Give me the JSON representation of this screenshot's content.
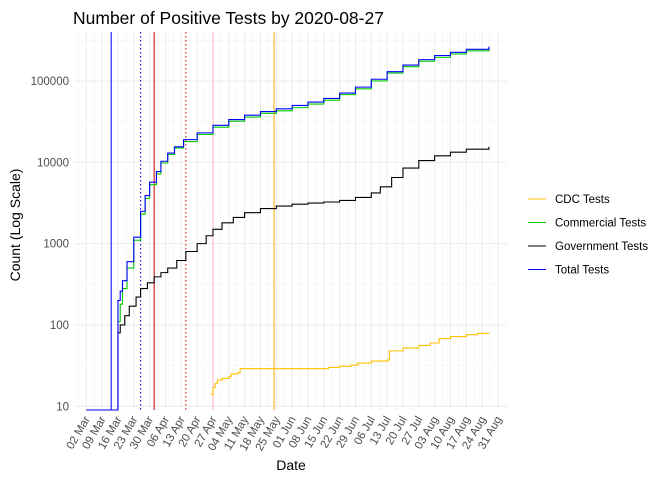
{
  "chart_data": {
    "type": "line",
    "title": "Number of Positive Tests by  2020-08-27",
    "xlabel": "Date",
    "ylabel": "Count (Log Scale)",
    "y_scale": "log10",
    "ylim": [
      9,
      400000
    ],
    "xlim": [
      "2020-02-26",
      "2020-09-04"
    ],
    "y_ticks": [
      10,
      100,
      1000,
      10000,
      100000
    ],
    "y_tick_labels": [
      "10",
      "100",
      "1000",
      "10000",
      "100000"
    ],
    "x_ticks": [
      "2020-03-02",
      "2020-03-09",
      "2020-03-16",
      "2020-03-23",
      "2020-03-30",
      "2020-04-06",
      "2020-04-13",
      "2020-04-20",
      "2020-04-27",
      "2020-05-04",
      "2020-05-11",
      "2020-05-18",
      "2020-05-25",
      "2020-06-01",
      "2020-06-08",
      "2020-06-15",
      "2020-06-22",
      "2020-06-29",
      "2020-07-06",
      "2020-07-13",
      "2020-07-20",
      "2020-07-27",
      "2020-08-03",
      "2020-08-10",
      "2020-08-17",
      "2020-08-24",
      "2020-08-31"
    ],
    "x_tick_labels": [
      "02 Mar",
      "09 Mar",
      "16 Mar",
      "23 Mar",
      "30 Mar",
      "06 Apr",
      "13 Apr",
      "20 Apr",
      "27 Apr",
      "04 May",
      "11 May",
      "18 May",
      "25 May",
      "01 Jun",
      "08 Jun",
      "15 Jun",
      "22 Jun",
      "29 Jun",
      "06 Jul",
      "13 Jul",
      "20 Jul",
      "27 Jul",
      "03 Aug",
      "10 Aug",
      "17 Aug",
      "24 Aug",
      "31 Aug"
    ],
    "grid": true,
    "legend_position": "right",
    "vlines": [
      {
        "x": "2020-03-13",
        "color": "#0000ff",
        "style": "solid"
      },
      {
        "x": "2020-03-26",
        "color": "#0000ff",
        "style": "dotted"
      },
      {
        "x": "2020-04-01",
        "color": "#cc0000",
        "style": "solid"
      },
      {
        "x": "2020-04-15",
        "color": "#cc0000",
        "style": "dotted"
      },
      {
        "x": "2020-04-27",
        "color": "#ffb6c1",
        "style": "solid"
      },
      {
        "x": "2020-05-24",
        "color": "#ffa500",
        "style": "solid"
      }
    ],
    "series": [
      {
        "name": "CDC Tests",
        "color": "#ffc000",
        "points": [
          [
            "2020-04-26",
            14
          ],
          [
            "2020-04-27",
            17
          ],
          [
            "2020-04-28",
            19
          ],
          [
            "2020-04-29",
            21
          ],
          [
            "2020-05-01",
            22
          ],
          [
            "2020-05-04",
            23
          ],
          [
            "2020-05-05",
            25
          ],
          [
            "2020-05-08",
            26
          ],
          [
            "2020-05-09",
            29
          ],
          [
            "2020-05-15",
            29
          ],
          [
            "2020-06-01",
            29
          ],
          [
            "2020-06-16",
            29
          ],
          [
            "2020-06-17",
            30
          ],
          [
            "2020-06-22",
            31
          ],
          [
            "2020-06-27",
            32
          ],
          [
            "2020-06-30",
            34
          ],
          [
            "2020-07-06",
            36
          ],
          [
            "2020-07-13",
            37
          ],
          [
            "2020-07-14",
            48
          ],
          [
            "2020-07-20",
            52
          ],
          [
            "2020-07-27",
            56
          ],
          [
            "2020-08-01",
            60
          ],
          [
            "2020-08-05",
            68
          ],
          [
            "2020-08-10",
            72
          ],
          [
            "2020-08-17",
            76
          ],
          [
            "2020-08-22",
            79
          ],
          [
            "2020-08-27",
            80
          ]
        ]
      },
      {
        "name": "Commercial Tests",
        "color": "#00cc00",
        "points": [
          [
            "2020-03-16",
            110
          ],
          [
            "2020-03-17",
            180
          ],
          [
            "2020-03-18",
            280
          ],
          [
            "2020-03-20",
            500
          ],
          [
            "2020-03-23",
            1100
          ],
          [
            "2020-03-26",
            2300
          ],
          [
            "2020-03-28",
            3600
          ],
          [
            "2020-03-30",
            5300
          ],
          [
            "2020-04-02",
            7200
          ],
          [
            "2020-04-04",
            9800
          ],
          [
            "2020-04-07",
            12500
          ],
          [
            "2020-04-10",
            15000
          ],
          [
            "2020-04-14",
            18000
          ],
          [
            "2020-04-20",
            22000
          ],
          [
            "2020-04-27",
            27000
          ],
          [
            "2020-05-04",
            32000
          ],
          [
            "2020-05-11",
            36000
          ],
          [
            "2020-05-18",
            40000
          ],
          [
            "2020-05-25",
            43000
          ],
          [
            "2020-06-01",
            47000
          ],
          [
            "2020-06-08",
            52000
          ],
          [
            "2020-06-15",
            58000
          ],
          [
            "2020-06-22",
            68000
          ],
          [
            "2020-06-29",
            80000
          ],
          [
            "2020-07-06",
            100000
          ],
          [
            "2020-07-13",
            125000
          ],
          [
            "2020-07-20",
            150000
          ],
          [
            "2020-07-27",
            175000
          ],
          [
            "2020-08-03",
            195000
          ],
          [
            "2020-08-10",
            215000
          ],
          [
            "2020-08-17",
            235000
          ],
          [
            "2020-08-27",
            255000
          ]
        ]
      },
      {
        "name": "Government Tests",
        "color": "#000000",
        "points": [
          [
            "2020-03-02",
            9
          ],
          [
            "2020-03-15",
            9
          ],
          [
            "2020-03-16",
            20
          ],
          [
            "2020-03-16",
            80
          ],
          [
            "2020-03-17",
            100
          ],
          [
            "2020-03-19",
            130
          ],
          [
            "2020-03-21",
            170
          ],
          [
            "2020-03-24",
            220
          ],
          [
            "2020-03-26",
            280
          ],
          [
            "2020-03-29",
            330
          ],
          [
            "2020-04-01",
            390
          ],
          [
            "2020-04-04",
            440
          ],
          [
            "2020-04-07",
            500
          ],
          [
            "2020-04-11",
            620
          ],
          [
            "2020-04-15",
            800
          ],
          [
            "2020-04-20",
            1000
          ],
          [
            "2020-04-24",
            1250
          ],
          [
            "2020-04-27",
            1500
          ],
          [
            "2020-05-01",
            1800
          ],
          [
            "2020-05-06",
            2100
          ],
          [
            "2020-05-11",
            2400
          ],
          [
            "2020-05-18",
            2700
          ],
          [
            "2020-05-25",
            2900
          ],
          [
            "2020-06-01",
            3050
          ],
          [
            "2020-06-08",
            3150
          ],
          [
            "2020-06-15",
            3250
          ],
          [
            "2020-06-22",
            3400
          ],
          [
            "2020-06-29",
            3700
          ],
          [
            "2020-07-06",
            4200
          ],
          [
            "2020-07-10",
            5000
          ],
          [
            "2020-07-15",
            6500
          ],
          [
            "2020-07-20",
            8500
          ],
          [
            "2020-07-27",
            10500
          ],
          [
            "2020-08-03",
            12000
          ],
          [
            "2020-08-10",
            13300
          ],
          [
            "2020-08-17",
            14500
          ],
          [
            "2020-08-27",
            15500
          ]
        ]
      },
      {
        "name": "Total Tests",
        "color": "#0000ff",
        "points": [
          [
            "2020-03-02",
            9
          ],
          [
            "2020-03-15",
            9
          ],
          [
            "2020-03-16",
            200
          ],
          [
            "2020-03-17",
            260
          ],
          [
            "2020-03-18",
            350
          ],
          [
            "2020-03-20",
            600
          ],
          [
            "2020-03-23",
            1200
          ],
          [
            "2020-03-26",
            2500
          ],
          [
            "2020-03-28",
            3900
          ],
          [
            "2020-03-30",
            5700
          ],
          [
            "2020-04-02",
            7700
          ],
          [
            "2020-04-04",
            10300
          ],
          [
            "2020-04-07",
            13000
          ],
          [
            "2020-04-10",
            15500
          ],
          [
            "2020-04-14",
            19000
          ],
          [
            "2020-04-20",
            23000
          ],
          [
            "2020-04-27",
            28500
          ],
          [
            "2020-05-04",
            33500
          ],
          [
            "2020-05-11",
            38000
          ],
          [
            "2020-05-18",
            42000
          ],
          [
            "2020-05-25",
            45500
          ],
          [
            "2020-06-01",
            50000
          ],
          [
            "2020-06-08",
            55000
          ],
          [
            "2020-06-15",
            61000
          ],
          [
            "2020-06-22",
            71000
          ],
          [
            "2020-06-29",
            84000
          ],
          [
            "2020-07-06",
            105000
          ],
          [
            "2020-07-13",
            130000
          ],
          [
            "2020-07-20",
            157000
          ],
          [
            "2020-07-27",
            183000
          ],
          [
            "2020-08-03",
            205000
          ],
          [
            "2020-08-10",
            225000
          ],
          [
            "2020-08-17",
            245000
          ],
          [
            "2020-08-27",
            265000
          ]
        ]
      }
    ]
  }
}
